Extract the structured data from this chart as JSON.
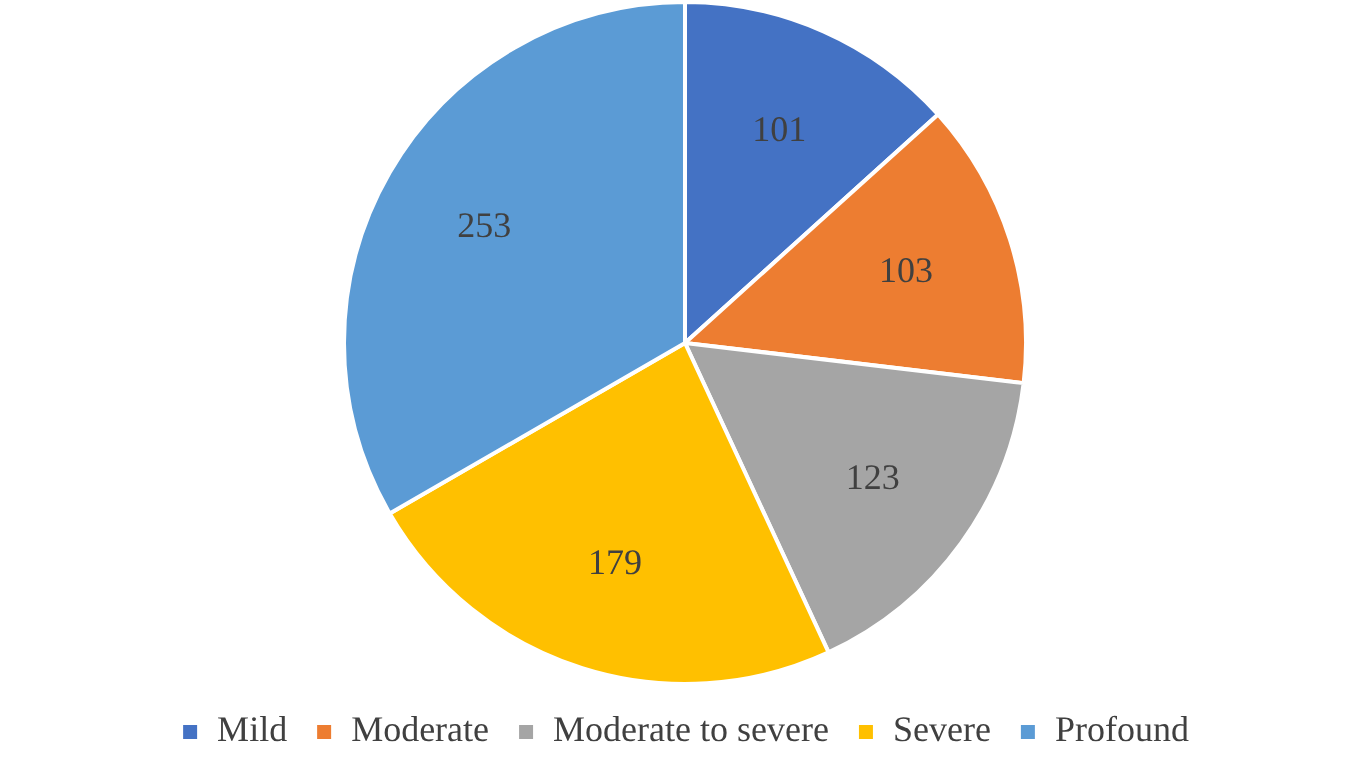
{
  "chart_data": {
    "type": "pie",
    "categories": [
      "Mild",
      "Moderate",
      "Moderate to severe",
      "Severe",
      "Profound"
    ],
    "values": [
      101,
      103,
      123,
      179,
      253
    ],
    "colors": [
      "#4472c4",
      "#ed7d31",
      "#a5a5a5",
      "#ffc000",
      "#5b9bd5"
    ],
    "data_labels": true,
    "legend": "bottom"
  }
}
